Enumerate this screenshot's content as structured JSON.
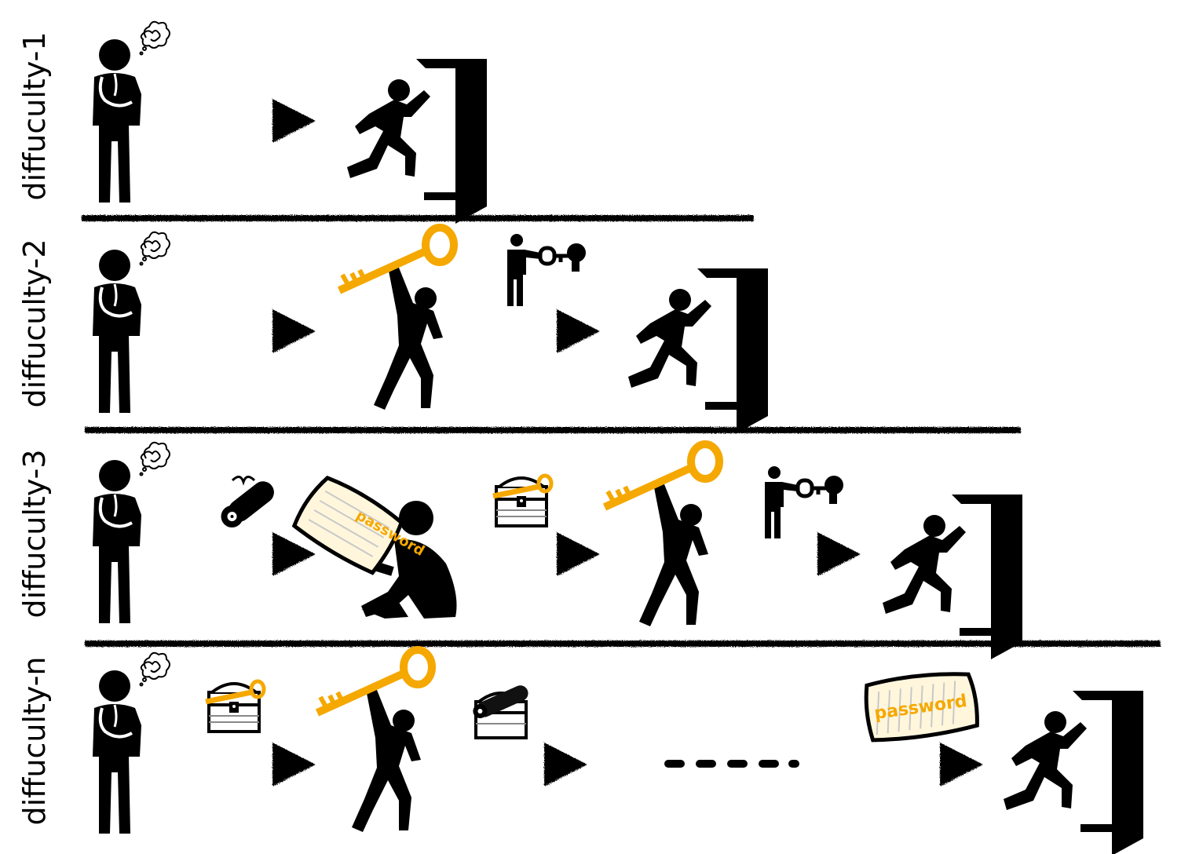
{
  "rows": [
    {
      "label": "diffuculty-1",
      "steps": [
        "thinking-person",
        "arrow",
        "exit-door"
      ]
    },
    {
      "label": "diffuculty-2",
      "steps": [
        "thinking-person",
        "arrow",
        "person-holding-key",
        "arrow",
        "exit-door"
      ],
      "arrow_badges": [
        "",
        "person-unlocking-icon"
      ]
    },
    {
      "label": "diffuculty-3",
      "steps": [
        "thinking-person",
        "arrow",
        "person-reading-password",
        "arrow",
        "person-holding-key",
        "arrow",
        "exit-door"
      ],
      "arrow_badges": [
        "scroll-icon",
        "treasure-chest-key-icon",
        "person-unlocking-icon"
      ]
    },
    {
      "label": "diffuculty-n",
      "steps": [
        "thinking-person",
        "arrow",
        "person-holding-key",
        "arrow",
        "ellipsis",
        "arrow",
        "exit-door"
      ],
      "arrow_badges": [
        "treasure-chest-key-icon",
        "treasure-chest-scroll-icon",
        "password-card-icon"
      ]
    }
  ],
  "password_text": "password",
  "colors": {
    "ink": "#000000",
    "accent": "#F5A800",
    "card_fill": "#FFF6DC",
    "card_lines": "#C8C8C8"
  }
}
